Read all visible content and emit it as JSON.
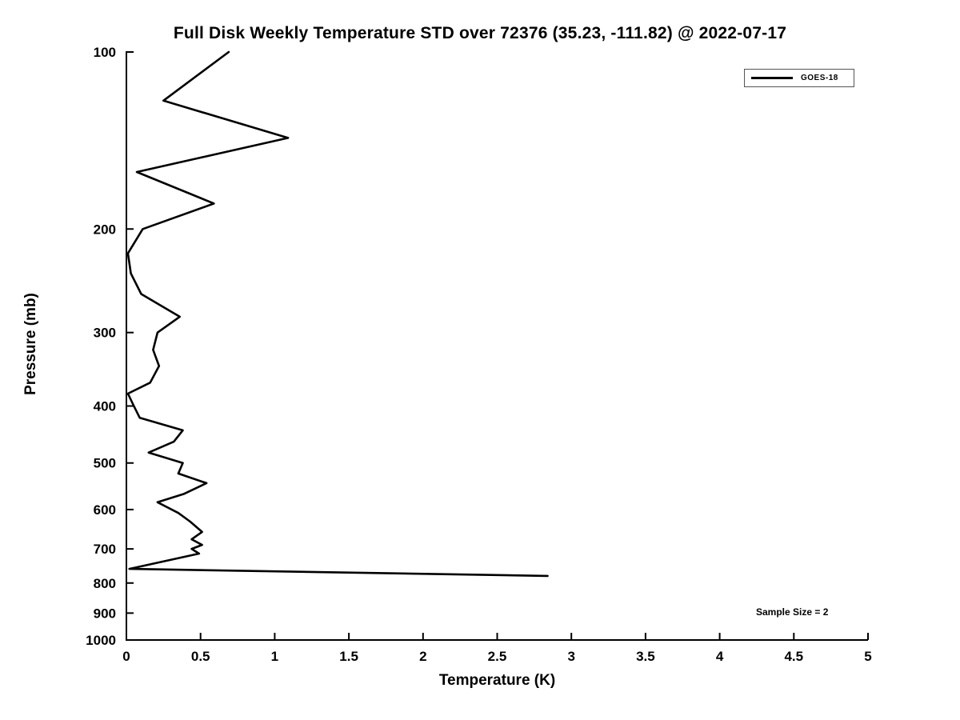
{
  "chart_data": {
    "type": "line",
    "title": "Full Disk Weekly Temperature STD over 72376 (35.23, -111.82) @ 2022-07-17",
    "xlabel": "Temperature (K)",
    "ylabel": "Pressure (mb)",
    "xlim": [
      0,
      5
    ],
    "ylim": [
      100,
      1000
    ],
    "yscale": "log",
    "y_inverted": true,
    "grid": false,
    "xticks": [
      0,
      0.5,
      1,
      1.5,
      2,
      2.5,
      3,
      3.5,
      4,
      4.5,
      5
    ],
    "xtick_labels": [
      "0",
      "0.5",
      "1",
      "1.5",
      "2",
      "2.5",
      "3",
      "3.5",
      "4",
      "4.5",
      "5"
    ],
    "yticks": [
      100,
      200,
      300,
      400,
      500,
      600,
      700,
      800,
      900,
      1000
    ],
    "ytick_labels": [
      "100",
      "200",
      "300",
      "400",
      "500",
      "600",
      "700",
      "800",
      "900",
      "1000"
    ],
    "legend": {
      "position": "top-right",
      "entries": [
        {
          "label": "GOES-18",
          "color": "#000000",
          "line_width": 3
        }
      ]
    },
    "annotation": "Sample Size = 2",
    "series": [
      {
        "name": "GOES-18",
        "color": "#000000",
        "points_format": "[temperature_K, pressure_mb]",
        "points": [
          [
            0.69,
            100
          ],
          [
            0.25,
            121
          ],
          [
            1.09,
            140
          ],
          [
            0.07,
            160
          ],
          [
            0.59,
            181
          ],
          [
            0.11,
            200
          ],
          [
            0.01,
            220
          ],
          [
            0.03,
            238
          ],
          [
            0.1,
            258
          ],
          [
            0.36,
            282
          ],
          [
            0.21,
            300
          ],
          [
            0.18,
            321
          ],
          [
            0.22,
            342
          ],
          [
            0.16,
            365
          ],
          [
            0.01,
            381
          ],
          [
            0.05,
            400
          ],
          [
            0.09,
            419
          ],
          [
            0.38,
            440
          ],
          [
            0.32,
            460
          ],
          [
            0.15,
            480
          ],
          [
            0.38,
            500
          ],
          [
            0.35,
            521
          ],
          [
            0.54,
            541
          ],
          [
            0.39,
            564
          ],
          [
            0.21,
            583
          ],
          [
            0.35,
            608
          ],
          [
            0.43,
            629
          ],
          [
            0.51,
            655
          ],
          [
            0.44,
            674
          ],
          [
            0.51,
            689
          ],
          [
            0.44,
            700
          ],
          [
            0.49,
            713
          ],
          [
            0.02,
            757
          ],
          [
            2.84,
            778
          ]
        ]
      }
    ],
    "colors": {
      "line": "#000000",
      "axis": "#000000",
      "background": "#ffffff"
    }
  }
}
